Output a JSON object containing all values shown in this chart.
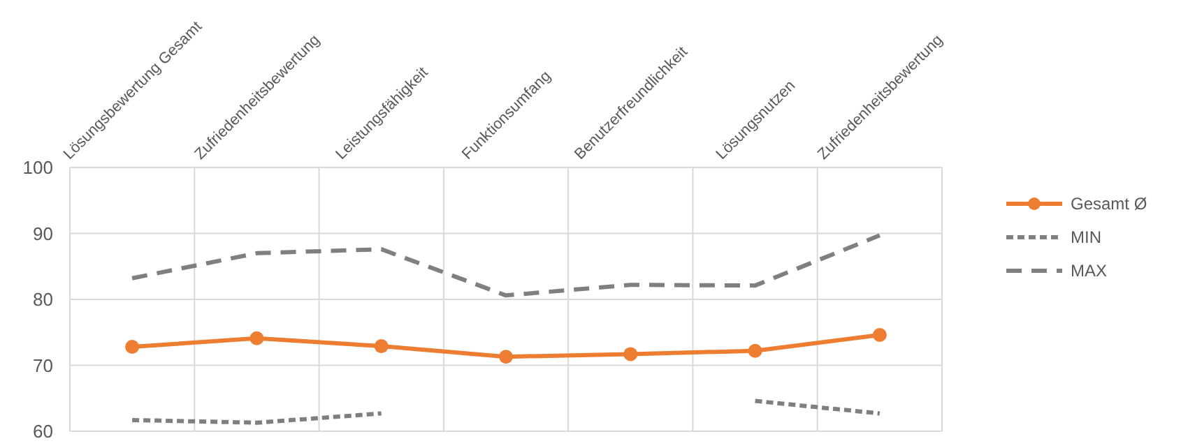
{
  "chart_data": {
    "type": "line",
    "categories": [
      "Lösungsbewertung Gesamt",
      "Zufriedenheitsbewertung",
      "Leistungsfähigkeit",
      "Funktionsumfang",
      "Benutzerfreundlichkeit",
      "Lösungsnutzen",
      "Zufriedenheitsbewertung"
    ],
    "series": [
      {
        "name": "Gesamt Ø",
        "color": "#ed7d31",
        "values": [
          72.8,
          74.1,
          72.9,
          71.3,
          71.7,
          72.2,
          74.6
        ],
        "marker": "circle",
        "line_style": "solid"
      },
      {
        "name": "MIN",
        "color": "#7f7f7f",
        "values": [
          61.7,
          61.3,
          62.7,
          null,
          null,
          64.6,
          62.7
        ],
        "marker": "none",
        "line_style": "dotted"
      },
      {
        "name": "MAX",
        "color": "#7f7f7f",
        "values": [
          83.2,
          87.0,
          87.6,
          80.6,
          82.2,
          82.1,
          89.7
        ],
        "marker": "none",
        "line_style": "dashed"
      }
    ],
    "ylim": [
      60,
      100
    ],
    "yticks": [
      60,
      70,
      80,
      90,
      100
    ],
    "grid": true,
    "legend": "top right"
  }
}
